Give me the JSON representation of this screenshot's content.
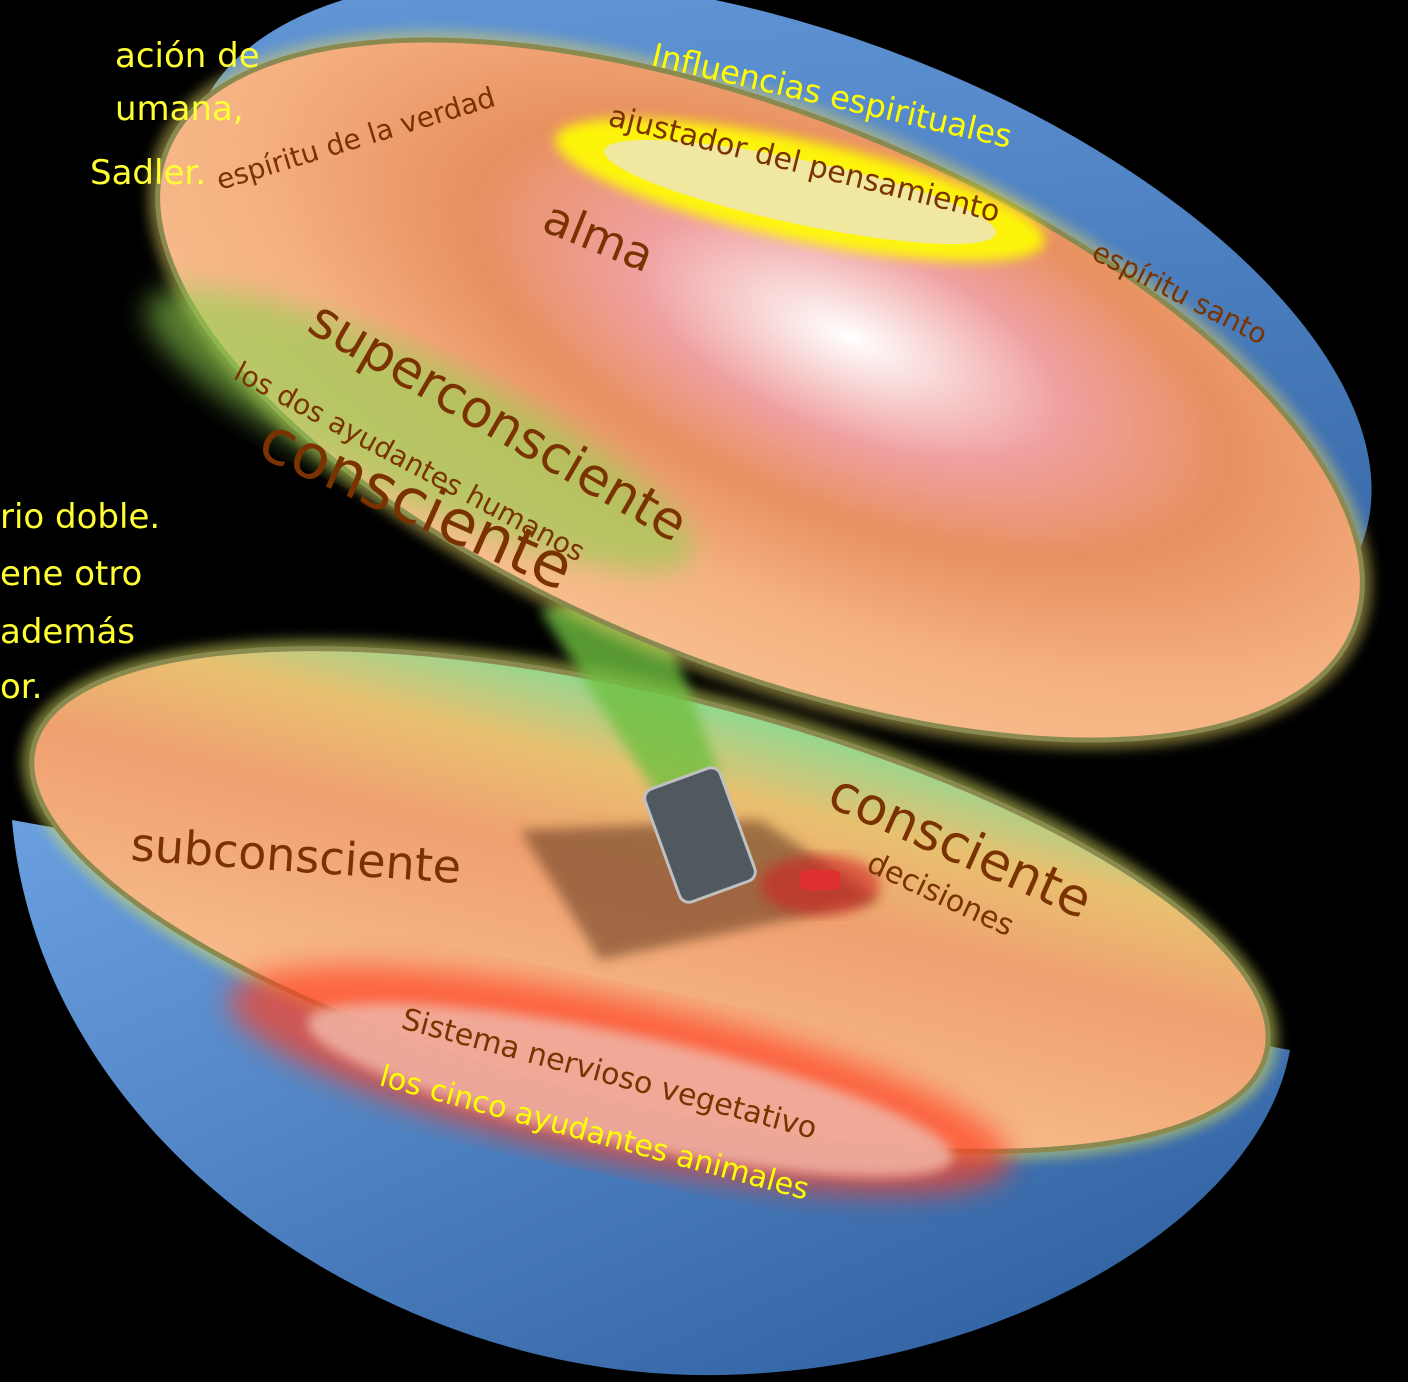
{
  "side_text": {
    "top": [
      "ación de",
      "umana,",
      "Sadler."
    ],
    "middle": [
      "rio doble.",
      "ene otro",
      "además",
      "or."
    ]
  },
  "upper_hemisphere": {
    "outer": "Influencias espirituales",
    "left": "espíritu de la verdad",
    "center": "ajustador del pensamiento",
    "right": "espíritu santo",
    "soul": "alma",
    "superconscious": "superconsciente",
    "helpers": "los dos ayudantes humanos",
    "conscious": "consciente"
  },
  "lower_hemisphere": {
    "subconscious": "subconsciente",
    "conscious": "consciente",
    "decisions": "decisiones",
    "nervous_system": "Sistema nervioso vegetativo",
    "helpers": "los cinco ayudantes animales"
  }
}
